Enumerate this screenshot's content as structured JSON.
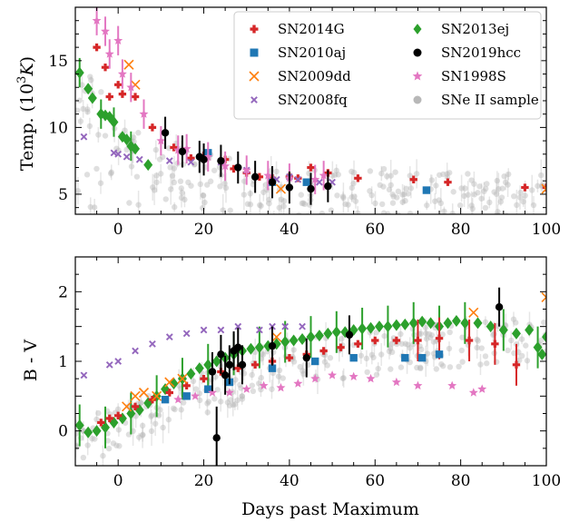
{
  "chart_data": [
    {
      "type": "scatter",
      "title": "",
      "xlabel": "",
      "ylabel": "Temp. (10³K)",
      "ylabel_main": "Temp. (10",
      "ylabel_sup": "3",
      "ylabel_unit": "K",
      "xlim": [
        -10,
        100
      ],
      "ylim": [
        3.5,
        19
      ],
      "xticks": [
        0,
        20,
        40,
        60,
        80,
        100
      ],
      "yticks": [
        5,
        10,
        15
      ],
      "xticks_shown": false,
      "legend_position": "top-right",
      "series": [
        {
          "name": "SN2014G",
          "marker": "plus",
          "color": "#d62728",
          "points": [
            [
              -5,
              16
            ],
            [
              -3,
              14.5
            ],
            [
              -2,
              12.3
            ],
            [
              0,
              13.2
            ],
            [
              1,
              12.5
            ],
            [
              4,
              12.3
            ],
            [
              8,
              10
            ],
            [
              13,
              8.5
            ],
            [
              17,
              7.7
            ],
            [
              20,
              7.9
            ],
            [
              25,
              7.6
            ],
            [
              27,
              6.9
            ],
            [
              30,
              6.6
            ],
            [
              33,
              6.3
            ],
            [
              36,
              6.2
            ],
            [
              40,
              6.3
            ],
            [
              42,
              6.2
            ],
            [
              45,
              7
            ],
            [
              49,
              6.6
            ],
            [
              56,
              6.2
            ],
            [
              69,
              6.1
            ],
            [
              77,
              5.9
            ],
            [
              95,
              5.5
            ],
            [
              100,
              5.5
            ]
          ]
        },
        {
          "name": "SN2010aj",
          "marker": "square",
          "color": "#1f77b4",
          "points": [
            [
              21,
              8.1
            ],
            [
              36,
              5.9
            ],
            [
              44,
              5.9
            ],
            [
              72,
              5.3
            ]
          ]
        },
        {
          "name": "SN2009dd",
          "marker": "x",
          "color": "#ff7f0e",
          "points": [
            [
              2.5,
              14.7
            ],
            [
              4,
              13.2
            ],
            [
              38,
              5.4
            ],
            [
              100,
              5.4
            ]
          ]
        },
        {
          "name": "SN2008fq",
          "marker": "xsmall",
          "color": "#9467bd",
          "points": [
            [
              -8,
              9.3
            ],
            [
              -1,
              8.1
            ],
            [
              0,
              8
            ],
            [
              2,
              7.8
            ],
            [
              5,
              7.6
            ],
            [
              12,
              7.5
            ],
            [
              17,
              7.4
            ],
            [
              24,
              7.4
            ],
            [
              30,
              6.8
            ],
            [
              37,
              6.1
            ],
            [
              40,
              6.3
            ],
            [
              42,
              6.1
            ],
            [
              47,
              5.9
            ],
            [
              50,
              5.9
            ]
          ]
        },
        {
          "name": "SN2013ej",
          "marker": "diamond",
          "color": "#2ca02c",
          "points": [
            [
              -9,
              14.1
            ],
            [
              -7,
              12.9
            ],
            [
              -6,
              12.2
            ],
            [
              -4,
              11
            ],
            [
              -3,
              10.9
            ],
            [
              -2,
              10.8
            ],
            [
              -1,
              10.4
            ],
            [
              1,
              9.3
            ],
            [
              2,
              9.1
            ],
            [
              3,
              8.6
            ],
            [
              4,
              8.4
            ],
            [
              7,
              7.2
            ]
          ]
        },
        {
          "name": "SN2019hcc",
          "marker": "circle",
          "color": "#000000",
          "points": [
            [
              11,
              9.6
            ],
            [
              15,
              8.2
            ],
            [
              19,
              7.8
            ],
            [
              20,
              7.6
            ],
            [
              24,
              7.5
            ],
            [
              28,
              7
            ],
            [
              32,
              6.3
            ],
            [
              36,
              5.9
            ],
            [
              40,
              5.5
            ],
            [
              45,
              5.4
            ],
            [
              49,
              5.6
            ]
          ]
        },
        {
          "name": "SN1998S",
          "marker": "star",
          "color": "#e377c2",
          "points": [
            [
              -5,
              18
            ],
            [
              -3,
              17.2
            ],
            [
              -2,
              15.5
            ],
            [
              0,
              16.5
            ],
            [
              1,
              14
            ],
            [
              3,
              13
            ],
            [
              6,
              11
            ],
            [
              10,
              9
            ],
            [
              14,
              8.3
            ],
            [
              16,
              8.4
            ],
            [
              21,
              7.8
            ],
            [
              25,
              7.1
            ],
            [
              30,
              6.8
            ],
            [
              35,
              6.4
            ],
            [
              40,
              6.2
            ],
            [
              46,
              6.1
            ],
            [
              48,
              6.4
            ]
          ]
        },
        {
          "name": "SNe II sample",
          "marker": "circle",
          "color": "#b8b8b8"
        }
      ]
    },
    {
      "type": "scatter",
      "title": "",
      "xlabel": "Days past Maximum",
      "ylabel": "B - V",
      "xlim": [
        -10,
        100
      ],
      "ylim": [
        -0.5,
        2.5
      ],
      "xticks": [
        0,
        20,
        40,
        60,
        80,
        100
      ],
      "yticks": [
        0,
        1,
        2
      ],
      "series": [
        {
          "name": "SN2014G",
          "marker": "plus",
          "color": "#d62728",
          "points": [
            [
              -4,
              0.12
            ],
            [
              -2,
              0.18
            ],
            [
              0,
              0.22
            ],
            [
              4,
              0.35
            ],
            [
              8,
              0.45
            ],
            [
              12,
              0.55
            ],
            [
              16,
              0.65
            ],
            [
              20,
              0.75
            ],
            [
              24,
              0.85
            ],
            [
              28,
              0.9
            ],
            [
              32,
              0.95
            ],
            [
              36,
              1
            ],
            [
              40,
              1.05
            ],
            [
              44,
              1.1
            ],
            [
              48,
              1.15
            ],
            [
              52,
              1.2
            ],
            [
              56,
              1.25
            ],
            [
              60,
              1.3
            ],
            [
              65,
              1.3
            ],
            [
              70,
              1.3
            ],
            [
              75,
              1.33
            ],
            [
              82,
              1.3
            ],
            [
              88,
              1.25
            ],
            [
              93,
              0.95
            ]
          ]
        },
        {
          "name": "SN2010aj",
          "marker": "square",
          "color": "#1f77b4",
          "points": [
            [
              11,
              0.45
            ],
            [
              16,
              0.5
            ],
            [
              21,
              0.6
            ],
            [
              26,
              0.7
            ],
            [
              36,
              0.9
            ],
            [
              46,
              1
            ],
            [
              55,
              1.05
            ],
            [
              67,
              1.05
            ],
            [
              71,
              1.05
            ],
            [
              75,
              1.1
            ]
          ]
        },
        {
          "name": "SN2009dd",
          "marker": "x",
          "color": "#ff7f0e",
          "points": [
            [
              2,
              0.35
            ],
            [
              4,
              0.5
            ],
            [
              6,
              0.55
            ],
            [
              9,
              0.5
            ],
            [
              12,
              0.7
            ],
            [
              15,
              0.75
            ],
            [
              37,
              1.35
            ],
            [
              83,
              1.7
            ],
            [
              100,
              1.92
            ]
          ]
        },
        {
          "name": "SN2008fq",
          "marker": "xsmall",
          "color": "#9467bd",
          "points": [
            [
              -8,
              0.8
            ],
            [
              -2,
              0.95
            ],
            [
              0,
              1
            ],
            [
              4,
              1.15
            ],
            [
              8,
              1.25
            ],
            [
              12,
              1.35
            ],
            [
              16,
              1.4
            ],
            [
              20,
              1.45
            ],
            [
              24,
              1.45
            ],
            [
              28,
              1.5
            ],
            [
              33,
              1.45
            ],
            [
              36,
              1.5
            ],
            [
              39,
              1.5
            ],
            [
              43,
              1.5
            ]
          ]
        },
        {
          "name": "SN2013ej",
          "marker": "diamond",
          "color": "#2ca02c",
          "points": [
            [
              -9,
              0.08
            ],
            [
              -7,
              -0.02
            ],
            [
              -5,
              0
            ],
            [
              -3,
              0.05
            ],
            [
              -1,
              0.12
            ],
            [
              1,
              0.18
            ],
            [
              3,
              0.25
            ],
            [
              5,
              0.3
            ],
            [
              7,
              0.4
            ],
            [
              9,
              0.5
            ],
            [
              11,
              0.6
            ],
            [
              13,
              0.68
            ],
            [
              15,
              0.75
            ],
            [
              17,
              0.82
            ],
            [
              19,
              0.9
            ],
            [
              21,
              0.95
            ],
            [
              23,
              1
            ],
            [
              25,
              1.05
            ],
            [
              27,
              1.1
            ],
            [
              29,
              1.15
            ],
            [
              31,
              1.18
            ],
            [
              33,
              1.2
            ],
            [
              35,
              1.22
            ],
            [
              37,
              1.25
            ],
            [
              39,
              1.28
            ],
            [
              41,
              1.3
            ],
            [
              43,
              1.32
            ],
            [
              45,
              1.35
            ],
            [
              47,
              1.37
            ],
            [
              49,
              1.4
            ],
            [
              51,
              1.42
            ],
            [
              53,
              1.42
            ],
            [
              55,
              1.45
            ],
            [
              57,
              1.47
            ],
            [
              59,
              1.48
            ],
            [
              61,
              1.5
            ],
            [
              63,
              1.5
            ],
            [
              65,
              1.52
            ],
            [
              67,
              1.53
            ],
            [
              69,
              1.55
            ],
            [
              71,
              1.57
            ],
            [
              73,
              1.55
            ],
            [
              75,
              1.5
            ],
            [
              77,
              1.55
            ],
            [
              79,
              1.58
            ],
            [
              81,
              1.55
            ],
            [
              84,
              1.55
            ],
            [
              87,
              1.5
            ],
            [
              90,
              1.45
            ],
            [
              93,
              1.4
            ],
            [
              96,
              1.45
            ],
            [
              98,
              1.2
            ],
            [
              99,
              1.1
            ],
            [
              100,
              1.35
            ]
          ]
        },
        {
          "name": "SN2019hcc",
          "marker": "circle",
          "color": "#000000",
          "points": [
            [
              22,
              0.85
            ],
            [
              23,
              -0.1
            ],
            [
              24,
              1.1
            ],
            [
              25,
              0.8
            ],
            [
              26,
              0.95
            ],
            [
              27,
              1.15
            ],
            [
              28,
              1.2
            ],
            [
              29,
              0.95
            ],
            [
              36,
              1.22
            ],
            [
              44,
              1.05
            ],
            [
              54,
              1.38
            ],
            [
              89,
              1.78
            ]
          ]
        },
        {
          "name": "SN1998S",
          "marker": "star",
          "color": "#e377c2",
          "points": [
            [
              14,
              0.45
            ],
            [
              18,
              0.5
            ],
            [
              22,
              0.55
            ],
            [
              26,
              0.55
            ],
            [
              30,
              0.6
            ],
            [
              34,
              0.65
            ],
            [
              38,
              0.62
            ],
            [
              42,
              0.68
            ],
            [
              46,
              0.75
            ],
            [
              50,
              0.8
            ],
            [
              55,
              0.78
            ],
            [
              59,
              0.75
            ],
            [
              65,
              0.7
            ],
            [
              70,
              0.65
            ],
            [
              78,
              0.65
            ],
            [
              83,
              0.55
            ],
            [
              85,
              0.6
            ]
          ]
        },
        {
          "name": "SNe II sample",
          "marker": "circle",
          "color": "#b8b8b8"
        }
      ]
    }
  ]
}
